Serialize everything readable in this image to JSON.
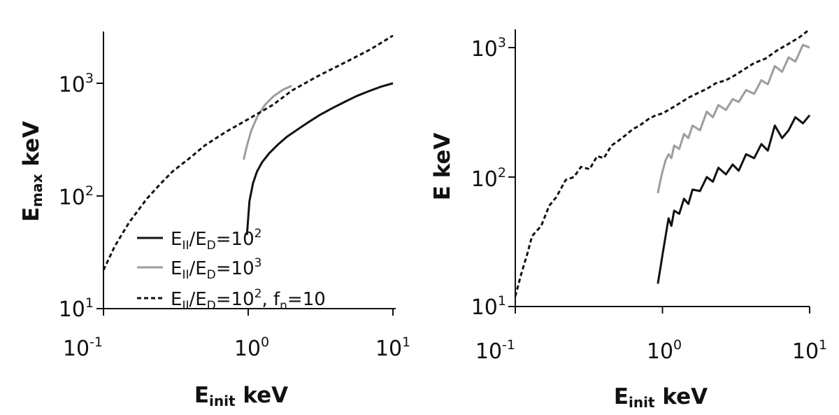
{
  "chart_data": [
    {
      "type": "line",
      "xscale": "log",
      "yscale": "log",
      "xlim": [
        0.1,
        10
      ],
      "ylim": [
        10,
        3000
      ],
      "xlabel": {
        "main": "E",
        "sub": "init",
        "rest": " keV"
      },
      "ylabel": {
        "main": "E",
        "sub": "max",
        "rest": " keV"
      },
      "xticks": [
        {
          "value": 0.1,
          "base": "10",
          "exp": "-1"
        },
        {
          "value": 1,
          "base": "10",
          "exp": "0"
        },
        {
          "value": 10,
          "base": "10",
          "exp": "1"
        }
      ],
      "yticks": [
        {
          "value": 10,
          "base": "10",
          "exp": "1"
        },
        {
          "value": 100,
          "base": "10",
          "exp": "2"
        },
        {
          "value": 1000,
          "base": "10",
          "exp": "3"
        }
      ],
      "legend_position": "bottom-left",
      "series": [
        {
          "name": "E_II/E_D=10^2",
          "legend": {
            "a": "E",
            "a_sub": "II",
            "b": "/E",
            "b_sub": "D",
            "c": "=10",
            "c_sup": "2",
            "d": "",
            "d_sub": "",
            "e": ""
          },
          "color": "#111111",
          "dash": "solid",
          "x": [
            0.98,
            1.02,
            1.08,
            1.15,
            1.25,
            1.4,
            1.6,
            1.85,
            2.2,
            2.6,
            3.1,
            3.8,
            4.6,
            5.6,
            6.8,
            8.2,
            10
          ],
          "y": [
            45,
            90,
            130,
            165,
            200,
            240,
            285,
            335,
            390,
            450,
            520,
            600,
            680,
            770,
            850,
            930,
            1000
          ]
        },
        {
          "name": "E_II/E_D=10^3",
          "legend": {
            "a": "E",
            "a_sub": "II",
            "b": "/E",
            "b_sub": "D",
            "c": "=10",
            "c_sup": "3",
            "d": "",
            "d_sub": "",
            "e": ""
          },
          "color": "#9a9e9e",
          "dash": "solid",
          "x": [
            0.93,
            0.98,
            1.05,
            1.15,
            1.3,
            1.5,
            1.75,
            2.0
          ],
          "y": [
            210,
            280,
            380,
            500,
            640,
            770,
            880,
            950
          ]
        },
        {
          "name": "E_II/E_D=10^2, f_n=10",
          "legend": {
            "a": "E",
            "a_sub": "II",
            "b": "/E",
            "b_sub": "D",
            "c": "=10",
            "c_sup": "2",
            "d": ", f",
            "d_sub": "n",
            "e": "=10"
          },
          "color": "#111111",
          "dash": "dashed",
          "x": [
            0.1,
            0.12,
            0.15,
            0.2,
            0.25,
            0.3,
            0.4,
            0.5,
            0.7,
            1.0,
            1.5,
            2.0,
            3.0,
            5.0,
            7.0,
            10
          ],
          "y": [
            22,
            36,
            58,
            95,
            130,
            165,
            220,
            280,
            370,
            480,
            650,
            860,
            1150,
            1600,
            2000,
            2650
          ]
        }
      ]
    },
    {
      "type": "line",
      "xscale": "log",
      "yscale": "log",
      "xlim": [
        0.1,
        10
      ],
      "ylim": [
        10,
        1400
      ],
      "xlabel": {
        "main": "E",
        "sub": "init",
        "rest": " keV"
      },
      "ylabel": {
        "main": "E keV",
        "sub": "",
        "rest": ""
      },
      "xticks": [
        {
          "value": 0.1,
          "base": "10",
          "exp": "-1"
        },
        {
          "value": 1,
          "base": "10",
          "exp": "0"
        },
        {
          "value": 10,
          "base": "10",
          "exp": "1"
        }
      ],
      "yticks": [
        {
          "value": 10,
          "base": "10",
          "exp": "1"
        },
        {
          "value": 100,
          "base": "10",
          "exp": "2"
        },
        {
          "value": 1000,
          "base": "10",
          "exp": "3"
        }
      ],
      "series": [
        {
          "name": "E_II/E_D=10^2",
          "color": "#111111",
          "dash": "solid",
          "x": [
            0.93,
            0.97,
            1.0,
            1.05,
            1.1,
            1.15,
            1.2,
            1.3,
            1.4,
            1.5,
            1.6,
            1.8,
            2.0,
            2.2,
            2.4,
            2.7,
            3.0,
            3.3,
            3.7,
            4.2,
            4.7,
            5.2,
            5.8,
            6.5,
            7.2,
            8.0,
            9.0,
            10
          ],
          "y": [
            15,
            20,
            25,
            35,
            48,
            42,
            55,
            52,
            68,
            62,
            80,
            78,
            100,
            92,
            118,
            105,
            125,
            112,
            150,
            140,
            180,
            160,
            250,
            200,
            230,
            290,
            260,
            300
          ]
        },
        {
          "name": "E_II/E_D=10^3",
          "color": "#9a9e9e",
          "dash": "solid",
          "x": [
            0.93,
            0.97,
            1.0,
            1.05,
            1.1,
            1.15,
            1.2,
            1.3,
            1.4,
            1.5,
            1.6,
            1.8,
            2.0,
            2.2,
            2.4,
            2.7,
            3.0,
            3.3,
            3.7,
            4.2,
            4.7,
            5.2,
            5.8,
            6.5,
            7.2,
            8.0,
            9.0,
            10
          ],
          "y": [
            75,
            95,
            110,
            135,
            150,
            140,
            175,
            165,
            215,
            200,
            250,
            230,
            320,
            290,
            360,
            330,
            400,
            380,
            470,
            440,
            560,
            520,
            720,
            650,
            840,
            780,
            1050,
            1000
          ]
        },
        {
          "name": "E_II/E_D=10^2, f_n=10",
          "color": "#111111",
          "dash": "dashed",
          "x": [
            0.1,
            0.11,
            0.12,
            0.13,
            0.15,
            0.17,
            0.19,
            0.22,
            0.25,
            0.28,
            0.32,
            0.36,
            0.4,
            0.45,
            0.5,
            0.56,
            0.63,
            0.7,
            0.8,
            0.9,
            1.0,
            1.15,
            1.3,
            1.5,
            1.7,
            2.0,
            2.3,
            2.7,
            3.1,
            3.6,
            4.2,
            5.0,
            6.0,
            7.0,
            8.5,
            10
          ],
          "y": [
            12,
            18,
            25,
            35,
            42,
            60,
            70,
            95,
            100,
            120,
            115,
            145,
            140,
            175,
            190,
            210,
            235,
            250,
            280,
            300,
            310,
            340,
            370,
            410,
            440,
            480,
            530,
            560,
            610,
            680,
            760,
            820,
            950,
            1050,
            1200,
            1380
          ]
        }
      ]
    }
  ]
}
